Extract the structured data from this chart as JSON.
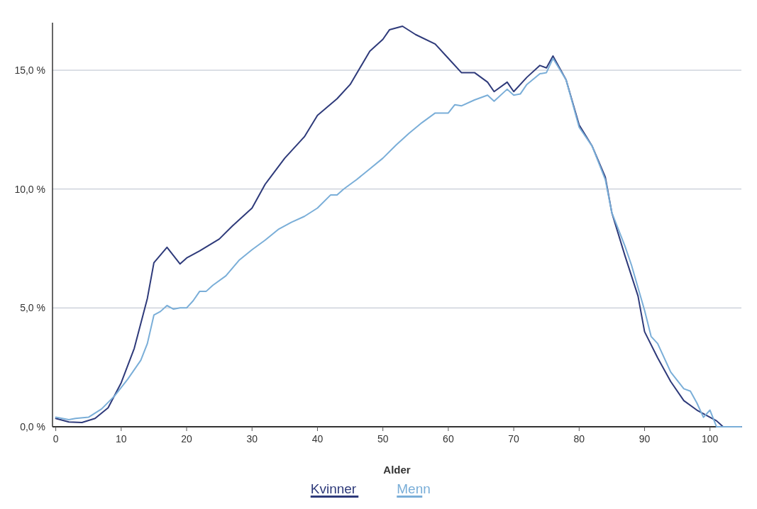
{
  "chart_data": {
    "type": "line",
    "xlabel": "Alder",
    "xlim": [
      -0.5,
      104.8
    ],
    "xticks": [
      0,
      10,
      20,
      30,
      40,
      50,
      60,
      70,
      80,
      90,
      100
    ],
    "ylim": [
      0,
      17
    ],
    "yticks": [
      {
        "value": 0,
        "label": "0,0 %"
      },
      {
        "value": 5,
        "label": "5,0 %"
      },
      {
        "value": 10,
        "label": "10,0 %"
      },
      {
        "value": 15,
        "label": "15,0 %"
      }
    ],
    "grid": "y",
    "legend": "bottom",
    "series": [
      {
        "name": "Kvinner",
        "color": "#2e3a7a",
        "x": [
          0,
          2,
          4,
          6,
          8,
          10,
          12,
          14,
          15,
          17,
          19,
          20,
          22,
          25,
          27,
          30,
          32,
          35,
          38,
          40,
          43,
          45,
          48,
          50,
          51,
          53,
          55,
          58,
          60,
          62,
          64,
          66,
          67,
          69,
          70,
          72,
          74,
          75,
          76,
          78,
          80,
          82,
          84,
          85,
          87,
          89,
          90,
          92,
          94,
          96,
          98,
          100,
          101,
          102,
          104.8
        ],
        "values": [
          0.35,
          0.2,
          0.18,
          0.35,
          0.8,
          1.85,
          3.3,
          5.4,
          6.9,
          7.55,
          6.85,
          7.1,
          7.4,
          7.9,
          8.45,
          9.2,
          10.2,
          11.3,
          12.2,
          13.1,
          13.8,
          14.4,
          15.8,
          16.3,
          16.7,
          16.85,
          16.5,
          16.1,
          15.5,
          14.9,
          14.9,
          14.5,
          14.1,
          14.5,
          14.1,
          14.7,
          15.2,
          15.1,
          15.6,
          14.6,
          12.7,
          11.8,
          10.5,
          9.0,
          7.2,
          5.5,
          4.0,
          2.9,
          1.9,
          1.1,
          0.7,
          0.4,
          0.25,
          0,
          0
        ]
      },
      {
        "name": "Menn",
        "color": "#7aaed8",
        "x": [
          0,
          2,
          3,
          5,
          7,
          9,
          11,
          13,
          14,
          15,
          16,
          17,
          18,
          19,
          20,
          21,
          22,
          23,
          24,
          26,
          28,
          30,
          32,
          34,
          36,
          38,
          40,
          42,
          43,
          44,
          46,
          48,
          50,
          52,
          54,
          56,
          58,
          60,
          61,
          62,
          64,
          66,
          67,
          69,
          70,
          71,
          72,
          74,
          75,
          76,
          78,
          80,
          82,
          84,
          85,
          87,
          88,
          90,
          91,
          92,
          94,
          96,
          97,
          98,
          99,
          100,
          101,
          104.8
        ],
        "values": [
          0.4,
          0.3,
          0.35,
          0.4,
          0.75,
          1.3,
          2.0,
          2.8,
          3.5,
          4.7,
          4.85,
          5.1,
          4.95,
          5.0,
          5.0,
          5.3,
          5.7,
          5.7,
          5.95,
          6.35,
          7.0,
          7.45,
          7.85,
          8.3,
          8.6,
          8.85,
          9.2,
          9.75,
          9.75,
          10.0,
          10.4,
          10.85,
          11.3,
          11.85,
          12.35,
          12.8,
          13.2,
          13.2,
          13.55,
          13.5,
          13.75,
          13.95,
          13.7,
          14.2,
          13.95,
          14.0,
          14.4,
          14.85,
          14.9,
          15.5,
          14.6,
          12.6,
          11.8,
          10.4,
          9.0,
          7.6,
          6.8,
          4.9,
          3.8,
          3.5,
          2.3,
          1.6,
          1.5,
          1.0,
          0.4,
          0.7,
          0,
          0
        ]
      }
    ]
  }
}
